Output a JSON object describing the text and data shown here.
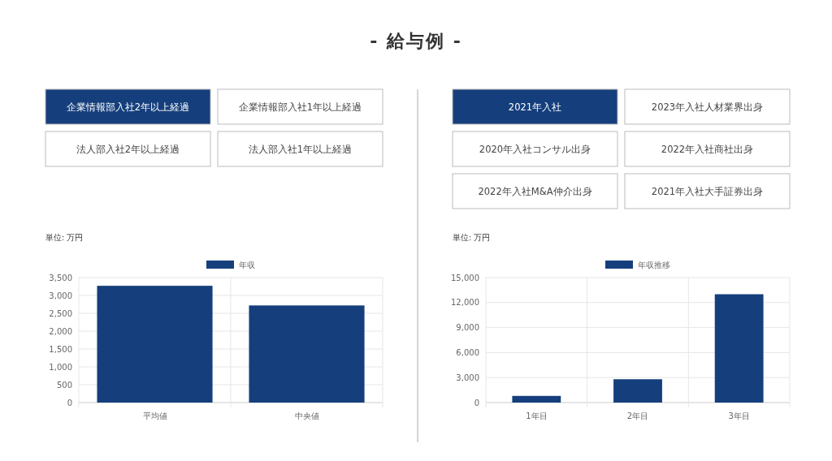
{
  "chart_data": [
    {
      "type": "bar",
      "title": "- 給与例 -",
      "ylabel": "単位: 万円",
      "categories": [
        "平均値",
        "中央値"
      ],
      "series": [
        {
          "name": "年収",
          "color": "#153f7c",
          "values": [
            3270,
            2720
          ]
        }
      ],
      "ylim": [
        0,
        3500
      ],
      "yticks": [
        {
          "value": 0,
          "label": "0"
        },
        {
          "value": 500,
          "label": "500"
        },
        {
          "value": 1000,
          "label": "1,000"
        },
        {
          "value": 1500,
          "label": "1,500"
        },
        {
          "value": 2000,
          "label": "2,000"
        },
        {
          "value": 2500,
          "label": "2,500"
        },
        {
          "value": 3000,
          "label": "3,000"
        },
        {
          "value": 3500,
          "label": "3,500"
        }
      ],
      "grid": true,
      "legend": "top",
      "annotations": [
        "企業情報部入社2年以上経過",
        "企業情報部入社1年以上経過",
        "法人部入社2年以上経過",
        "法人部入社1年以上経過"
      ]
    },
    {
      "type": "bar",
      "ylabel": "単位: 万円",
      "categories": [
        "1年目",
        "2年目",
        "3年目"
      ],
      "series": [
        {
          "name": "年収推移",
          "color": "#153f7c",
          "values": [
            800,
            2800,
            13000
          ]
        }
      ],
      "ylim": [
        0,
        15000
      ],
      "yticks": [
        {
          "value": 0,
          "label": "0"
        },
        {
          "value": 3000,
          "label": "3,000"
        },
        {
          "value": 6000,
          "label": "6,000"
        },
        {
          "value": 9000,
          "label": "9,000"
        },
        {
          "value": 12000,
          "label": "12,000"
        },
        {
          "value": 15000,
          "label": "15,000"
        }
      ],
      "grid": true,
      "legend": "top",
      "annotations": [
        "2021年入社",
        "2023年入社人材業界出身",
        "2020年入社コンサル出身",
        "2022年入社商社出身",
        "2022年入社M&A仲介出身",
        "2021年入社大手証券出身"
      ]
    }
  ]
}
